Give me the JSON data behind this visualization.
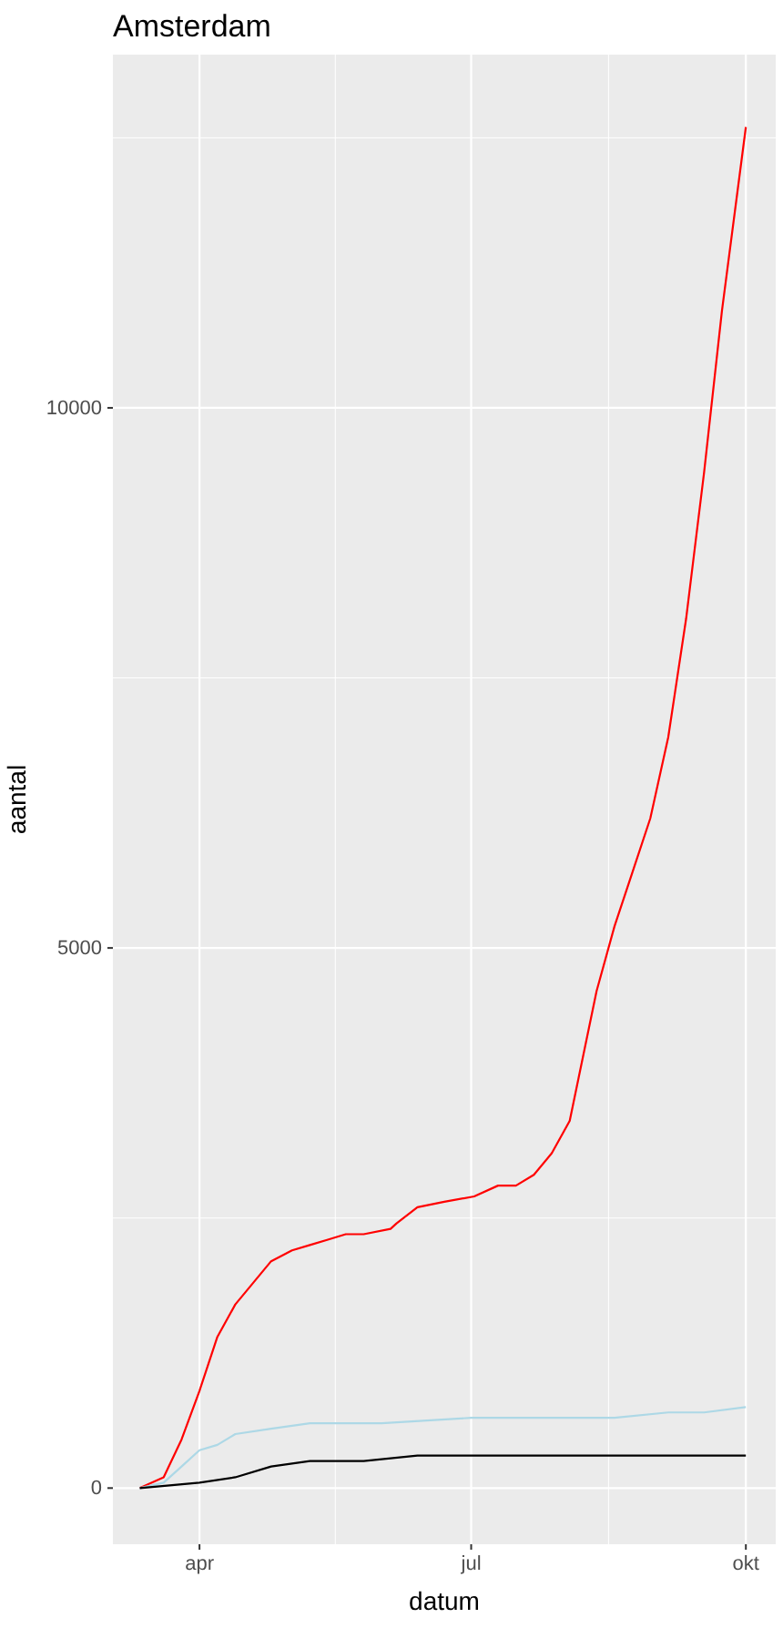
{
  "chart_data": {
    "type": "line",
    "title": "Amsterdam",
    "xlabel": "datum",
    "ylabel": "aantal",
    "xlim": [
      "--03-03",
      "--10-11"
    ],
    "ylim": [
      -520,
      13270
    ],
    "xticks": [
      {
        "value": "--04-01",
        "label": "apr"
      },
      {
        "value": "--07-01",
        "label": "jul"
      },
      {
        "value": "--10-01",
        "label": "okt"
      }
    ],
    "yticks": [
      0,
      5000,
      10000
    ],
    "grid": true,
    "marker": "none",
    "line_style": "solid",
    "series": [
      {
        "color": "#ff0000",
        "x": [
          "--03-12",
          "--03-20",
          "--03-26",
          "--04-01",
          "--04-07",
          "--04-13",
          "--04-19",
          "--04-25",
          "--05-02",
          "--05-08",
          "--05-14",
          "--05-20",
          "--05-26",
          "--06-04",
          "--06-06",
          "--06-13",
          "--06-22",
          "--07-02",
          "--07-10",
          "--07-16",
          "--07-22",
          "--07-28",
          "--08-03",
          "--08-06",
          "--08-12",
          "--08-18",
          "--08-24",
          "--08-30",
          "--09-05",
          "--09-11",
          "--09-17",
          "--09-23",
          "--10-01"
        ],
        "values": [
          0,
          100,
          450,
          900,
          1400,
          1700,
          1900,
          2100,
          2200,
          2250,
          2300,
          2350,
          2350,
          2400,
          2450,
          2600,
          2650,
          2700,
          2800,
          2800,
          2900,
          3100,
          3400,
          3800,
          4600,
          5200,
          5700,
          6200,
          6950,
          8050,
          9400,
          10900,
          12600
        ]
      },
      {
        "color": "#add8e6",
        "x": [
          "--03-12",
          "--03-20",
          "--03-26",
          "--04-01",
          "--04-07",
          "--04-13",
          "--04-25",
          "--05-08",
          "--06-01",
          "--07-01",
          "--08-01",
          "--08-18",
          "--09-05",
          "--09-17",
          "--10-01"
        ],
        "values": [
          0,
          50,
          200,
          350,
          400,
          500,
          550,
          600,
          600,
          650,
          650,
          650,
          700,
          700,
          750
        ]
      },
      {
        "color": "#000000",
        "x": [
          "--03-12",
          "--04-01",
          "--04-13",
          "--04-25",
          "--05-08",
          "--05-26",
          "--06-13",
          "--07-01",
          "--08-01",
          "--08-18",
          "--10-01"
        ],
        "values": [
          0,
          50,
          100,
          200,
          250,
          250,
          300,
          300,
          300,
          300,
          300
        ]
      }
    ]
  }
}
